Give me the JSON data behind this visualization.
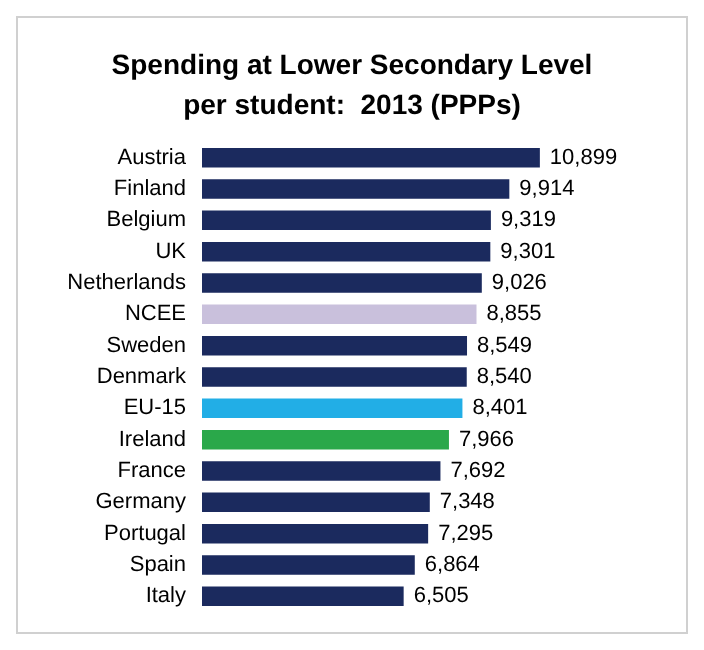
{
  "chart_data": {
    "type": "bar",
    "orientation": "horizontal",
    "title": "Spending at Lower Secondary Level\nper student:  2013 (PPPs)",
    "categories": [
      "Austria",
      "Finland",
      "Belgium",
      "UK",
      "Netherlands",
      "NCEE",
      "Sweden",
      "Denmark",
      "EU-15",
      "Ireland",
      "France",
      "Germany",
      "Portugal",
      "Spain",
      "Italy"
    ],
    "values": [
      10899,
      9914,
      9319,
      9301,
      9026,
      8855,
      8549,
      8540,
      8401,
      7966,
      7692,
      7348,
      7295,
      6864,
      6505
    ],
    "value_labels": [
      "10,899",
      "9,914",
      "9,319",
      "9,301",
      "9,026",
      "8,855",
      "8,549",
      "8,540",
      "8,401",
      "7,966",
      "7,692",
      "7,348",
      "7,295",
      "6,864",
      "6,505"
    ],
    "colors": [
      "#1b2a5e",
      "#1b2a5e",
      "#1b2a5e",
      "#1b2a5e",
      "#1b2a5e",
      "#c9c0dc",
      "#1b2a5e",
      "#1b2a5e",
      "#22aee6",
      "#2aa84a",
      "#1b2a5e",
      "#1b2a5e",
      "#1b2a5e",
      "#1b2a5e",
      "#1b2a5e"
    ]
  }
}
